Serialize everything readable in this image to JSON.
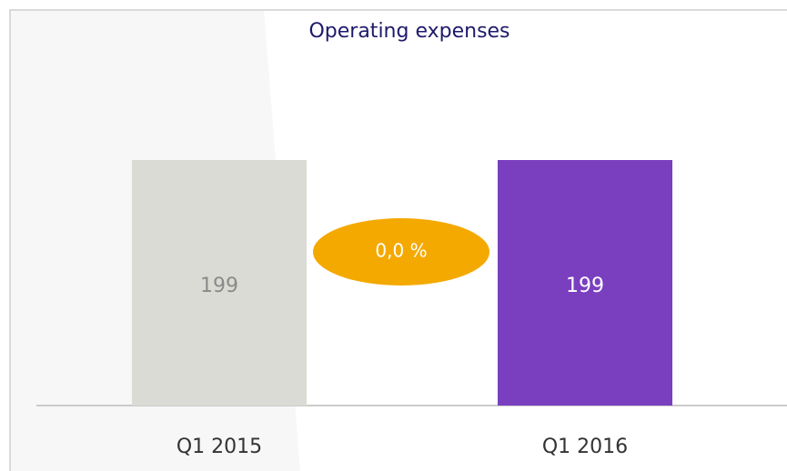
{
  "chart_data": {
    "type": "bar",
    "title": "Operating expenses",
    "categories": [
      "Q1 2015",
      "Q1 2016"
    ],
    "values": [
      199,
      199
    ],
    "colors": [
      "#dbdbd5",
      "#7a3fbf"
    ],
    "annotation": "0,0 %",
    "annotation_color": "#f4a900"
  }
}
